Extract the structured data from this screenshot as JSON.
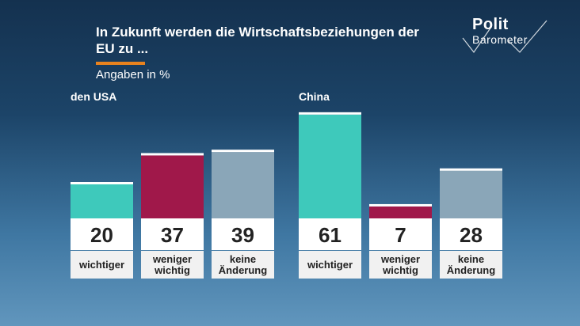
{
  "header": {
    "title": "In Zukunft werden die Wirtschaftsbeziehungen der EU zu ...",
    "subtitle": "Angaben in %",
    "accent_color": "#e8821e"
  },
  "logo": {
    "line1": "Polit",
    "line2": "Barometer"
  },
  "chart_data": [
    {
      "type": "bar",
      "title": "den USA",
      "categories": [
        "wichtiger",
        "weniger\nwichtig",
        "keine\nÄnderung"
      ],
      "values": [
        20,
        37,
        39
      ],
      "colors": [
        "#3ec9bb",
        "#a0184a",
        "#8aa6b8"
      ]
    },
    {
      "type": "bar",
      "title": "China",
      "categories": [
        "wichtiger",
        "weniger\nwichtig",
        "keine\nÄnderung"
      ],
      "values": [
        61,
        7,
        28
      ],
      "colors": [
        "#3ec9bb",
        "#a0184a",
        "#8aa6b8"
      ]
    }
  ]
}
